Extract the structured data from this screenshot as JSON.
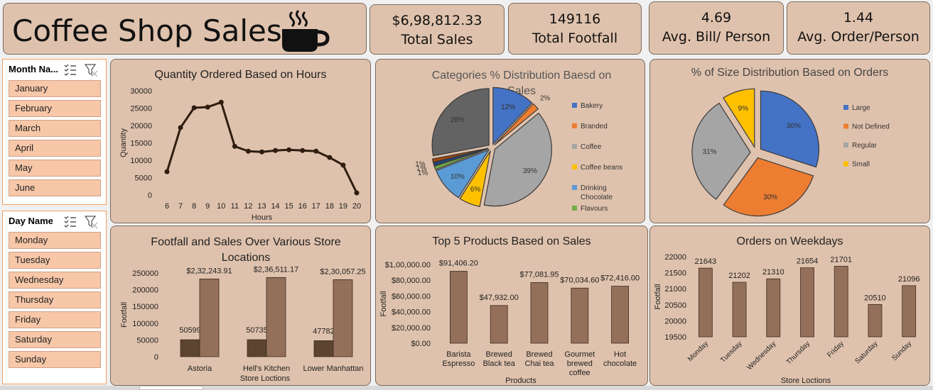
{
  "header": {
    "title": "Coffee Shop Sales"
  },
  "kpis": [
    {
      "value": "$6,98,812.33",
      "label": "Total Sales"
    },
    {
      "value": "149116",
      "label": "Total Footfall"
    },
    {
      "value": "4.69",
      "label": "Avg. Bill/ Person"
    },
    {
      "value": "1.44",
      "label": "Avg. Order/Person"
    }
  ],
  "month_slicer": {
    "title": "Month Na...",
    "items": [
      "January",
      "February",
      "March",
      "April",
      "May",
      "June"
    ]
  },
  "day_slicer": {
    "title": "Day Name",
    "items": [
      "Monday",
      "Tuesday",
      "Wednesday",
      "Thursday",
      "Friday",
      "Saturday",
      "Sunday"
    ]
  },
  "colors": {
    "card_bg": "#dfc2ad",
    "bar_dark": "#5c4430",
    "bar_light": "#94705a",
    "line": "#2e1d10"
  },
  "chart_data": [
    {
      "id": "hours",
      "type": "line",
      "title": "Quantity Ordered Based on Hours",
      "xlabel": "Hours",
      "ylabel": "Quantity",
      "x": [
        6,
        7,
        8,
        9,
        10,
        11,
        12,
        13,
        14,
        15,
        16,
        17,
        18,
        19,
        20
      ],
      "values": [
        6700,
        19400,
        25100,
        25300,
        26700,
        14000,
        12600,
        12400,
        12800,
        13000,
        12800,
        12600,
        10800,
        8600,
        600
      ],
      "ylim": [
        0,
        30000
      ],
      "yticks": [
        "0",
        "5000",
        "10000",
        "15000",
        "20000",
        "25000",
        "30000"
      ]
    },
    {
      "id": "categories",
      "type": "pie",
      "title": "Categories % Distribution Baesd on Sales",
      "slices": [
        {
          "label": "Bakery",
          "pct": 12,
          "color": "#4472c4",
          "show": "12%"
        },
        {
          "label": "Branded",
          "pct": 2,
          "color": "#ed7d31",
          "show": "2%"
        },
        {
          "label": "Coffee",
          "pct": 39,
          "color": "#a5a5a5",
          "show": "39%"
        },
        {
          "label": "Coffee beans",
          "pct": 6,
          "color": "#ffc000",
          "show": "6%"
        },
        {
          "label": "Drinking Chocolate",
          "pct": 10,
          "color": "#5b9bd5",
          "show": "10%"
        },
        {
          "label": "Flavours",
          "pct": 1,
          "color": "#70ad47",
          "show": "1%"
        },
        {
          "label": "",
          "pct": 1,
          "color": "#264478",
          "show": "1%"
        },
        {
          "label": "",
          "pct": 1,
          "color": "#9e480e",
          "show": "1%"
        },
        {
          "label": "",
          "pct": 28,
          "color": "#636363",
          "show": "28%"
        }
      ]
    },
    {
      "id": "sizes",
      "type": "pie",
      "title": "%  of Size Distribution Based on Orders",
      "slices": [
        {
          "label": "Large",
          "pct": 30,
          "color": "#4472c4",
          "show": "30%"
        },
        {
          "label": "Not Defined",
          "pct": 30,
          "color": "#ed7d31",
          "show": "30%"
        },
        {
          "label": "Regular",
          "pct": 31,
          "color": "#a5a5a5",
          "show": "31%"
        },
        {
          "label": "Small",
          "pct": 9,
          "color": "#ffc000",
          "show": "9%"
        }
      ]
    },
    {
      "id": "stores",
      "type": "bar",
      "title": "Footfall and Sales Over Various Store Locations",
      "xlabel": "Store Loctions",
      "ylabel": "Footfall",
      "categories": [
        "Astoria",
        "Hell's Kitchen",
        "Lower Manhattan"
      ],
      "series": [
        {
          "values": [
            50599,
            50735,
            47782
          ],
          "labels": [
            "50599",
            "50735",
            "47782"
          ]
        },
        {
          "values": [
            232243.91,
            236511.17,
            230057.25
          ],
          "labels": [
            "$2,32,243.91",
            "$2,36,511.17",
            "$2,30,057.25"
          ]
        }
      ],
      "ylim": [
        0,
        250000
      ],
      "yticks": [
        "0",
        "50000",
        "100000",
        "150000",
        "200000",
        "250000"
      ]
    },
    {
      "id": "products",
      "type": "bar",
      "title": "Top 5 Products Based on Sales",
      "xlabel": "Products",
      "ylabel": "Footfall",
      "categories": [
        "Barista Espresso",
        "Brewed Black tea",
        "Brewed Chai tea",
        "Gourmet brewed coffee",
        "Hot chocolate"
      ],
      "values": [
        91406.2,
        47932,
        77081.95,
        70034.6,
        72416
      ],
      "labels": [
        "$91,406.20",
        "$47,932.00",
        "$77,081.95",
        "$70,034.60",
        "$72,416.00"
      ],
      "ylim": [
        0,
        100000
      ],
      "yticks": [
        "$0.00",
        "$20,000.00",
        "$40,000.00",
        "$60,000.00",
        "$80,000.00",
        "$1,00,000.00"
      ]
    },
    {
      "id": "weekdays",
      "type": "bar",
      "title": "Orders on Weekdays",
      "xlabel": "Store Loctions",
      "ylabel": "Footfall",
      "categories": [
        "Monday",
        "Tuesday",
        "Wednesday",
        "Thursday",
        "Friday",
        "Saturday",
        "Sunday"
      ],
      "values": [
        21643,
        21202,
        21310,
        21654,
        21701,
        20510,
        21096
      ],
      "ylim": [
        19500,
        22000
      ],
      "yticks": [
        "19500",
        "20000",
        "20500",
        "21000",
        "21500",
        "22000"
      ]
    }
  ]
}
